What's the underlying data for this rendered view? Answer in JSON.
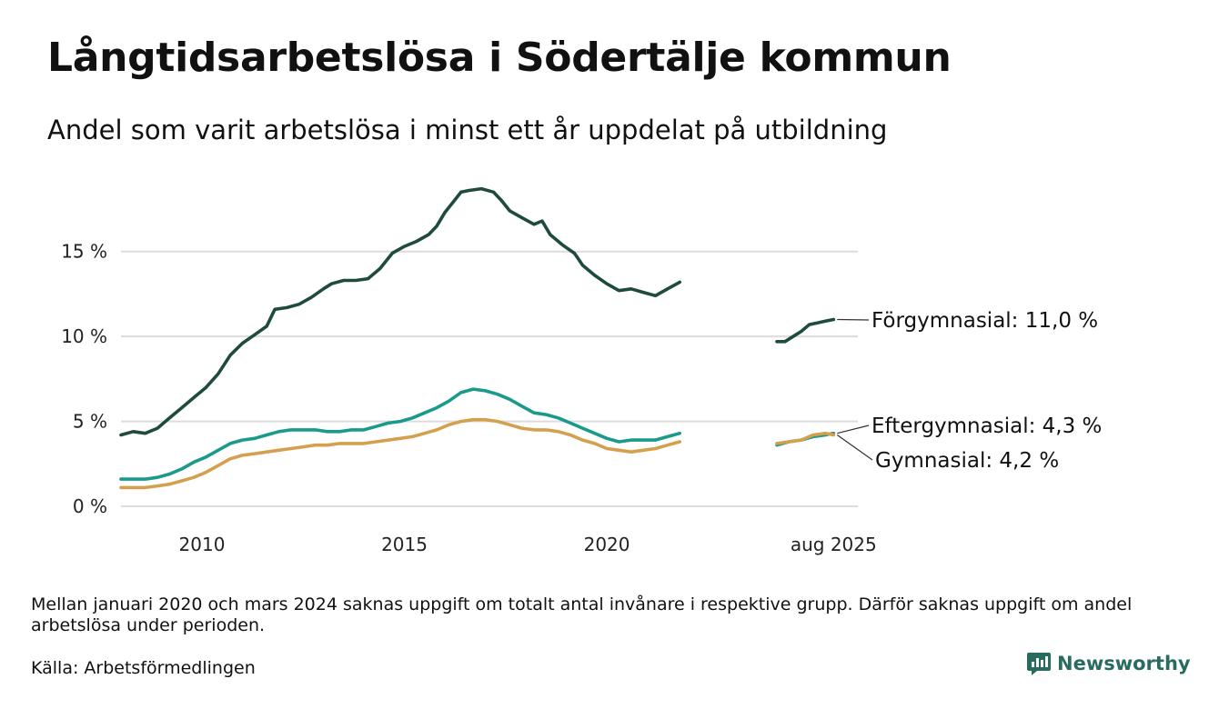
{
  "title": "Långtidsarbetslösa i Södertälje kommun",
  "subtitle": "Andel som varit arbetslösa i minst ett år uppdelat på utbildning",
  "note": "Mellan januari 2020 och mars 2024 saknas uppgift om totalt antal invånare i respektive grupp. Därför saknas uppgift om andel arbetslösa under perioden.",
  "source": "Källa: Arbetsförmedlingen",
  "brand": {
    "name": "Newsworthy",
    "color": "#2a6b5f"
  },
  "chart_data": {
    "type": "line",
    "x_unit": "year",
    "ylim": [
      0,
      19
    ],
    "xlim": [
      2008.0,
      2026.2
    ],
    "yticks": [
      0,
      5,
      10,
      15
    ],
    "ytick_labels": [
      "0 %",
      "5 %",
      "10 %",
      "15 %"
    ],
    "xticks": [
      2010,
      2015,
      2020,
      2025.6
    ],
    "xtick_labels": [
      "2010",
      "2015",
      "2020",
      "aug 2025"
    ],
    "grid": "horizontal",
    "series": [
      {
        "name": "Förgymnasial",
        "end_label": "Förgymnasial: 11,0 %",
        "color": "#1f4a40",
        "segments": [
          [
            [
              2008.0,
              4.2
            ],
            [
              2008.3,
              4.4
            ],
            [
              2008.6,
              4.3
            ],
            [
              2008.9,
              4.6
            ],
            [
              2009.2,
              5.2
            ],
            [
              2009.5,
              5.8
            ],
            [
              2009.8,
              6.4
            ],
            [
              2010.1,
              7.0
            ],
            [
              2010.4,
              7.8
            ],
            [
              2010.7,
              8.9
            ],
            [
              2011.0,
              9.6
            ],
            [
              2011.3,
              10.1
            ],
            [
              2011.6,
              10.6
            ],
            [
              2011.8,
              11.6
            ],
            [
              2012.1,
              11.7
            ],
            [
              2012.4,
              11.9
            ],
            [
              2012.7,
              12.3
            ],
            [
              2013.0,
              12.8
            ],
            [
              2013.2,
              13.1
            ],
            [
              2013.5,
              13.3
            ],
            [
              2013.8,
              13.3
            ],
            [
              2014.1,
              13.4
            ],
            [
              2014.4,
              14.0
            ],
            [
              2014.7,
              14.9
            ],
            [
              2015.0,
              15.3
            ],
            [
              2015.3,
              15.6
            ],
            [
              2015.6,
              16.0
            ],
            [
              2015.8,
              16.5
            ],
            [
              2016.0,
              17.3
            ],
            [
              2016.2,
              17.9
            ],
            [
              2016.4,
              18.5
            ],
            [
              2016.6,
              18.6
            ],
            [
              2016.9,
              18.7
            ],
            [
              2017.2,
              18.5
            ],
            [
              2017.4,
              18.0
            ],
            [
              2017.6,
              17.4
            ],
            [
              2017.9,
              17.0
            ],
            [
              2018.2,
              16.6
            ],
            [
              2018.4,
              16.8
            ],
            [
              2018.6,
              16.0
            ],
            [
              2018.9,
              15.4
            ],
            [
              2019.2,
              14.9
            ],
            [
              2019.4,
              14.2
            ],
            [
              2019.7,
              13.6
            ],
            [
              2020.0,
              13.1
            ],
            [
              2020.3,
              12.7
            ],
            [
              2020.6,
              12.8
            ],
            [
              2020.9,
              12.6
            ],
            [
              2021.2,
              12.4
            ],
            [
              2021.5,
              12.8
            ],
            [
              2021.8,
              13.2
            ]
          ],
          [
            [
              2024.2,
              9.7
            ],
            [
              2024.4,
              9.7
            ],
            [
              2024.6,
              10.0
            ],
            [
              2024.8,
              10.3
            ],
            [
              2025.0,
              10.7
            ],
            [
              2025.2,
              10.8
            ],
            [
              2025.4,
              10.9
            ],
            [
              2025.6,
              11.0
            ]
          ]
        ]
      },
      {
        "name": "Eftergymnasial",
        "end_label": "Eftergymnasial:  4,3 %",
        "color": "#1a9a8a",
        "segments": [
          [
            [
              2008.0,
              1.6
            ],
            [
              2008.3,
              1.6
            ],
            [
              2008.6,
              1.6
            ],
            [
              2008.9,
              1.7
            ],
            [
              2009.2,
              1.9
            ],
            [
              2009.5,
              2.2
            ],
            [
              2009.8,
              2.6
            ],
            [
              2010.1,
              2.9
            ],
            [
              2010.4,
              3.3
            ],
            [
              2010.7,
              3.7
            ],
            [
              2011.0,
              3.9
            ],
            [
              2011.3,
              4.0
            ],
            [
              2011.6,
              4.2
            ],
            [
              2011.9,
              4.4
            ],
            [
              2012.2,
              4.5
            ],
            [
              2012.5,
              4.5
            ],
            [
              2012.8,
              4.5
            ],
            [
              2013.1,
              4.4
            ],
            [
              2013.4,
              4.4
            ],
            [
              2013.7,
              4.5
            ],
            [
              2014.0,
              4.5
            ],
            [
              2014.3,
              4.7
            ],
            [
              2014.6,
              4.9
            ],
            [
              2014.9,
              5.0
            ],
            [
              2015.2,
              5.2
            ],
            [
              2015.5,
              5.5
            ],
            [
              2015.8,
              5.8
            ],
            [
              2016.1,
              6.2
            ],
            [
              2016.4,
              6.7
            ],
            [
              2016.7,
              6.9
            ],
            [
              2017.0,
              6.8
            ],
            [
              2017.3,
              6.6
            ],
            [
              2017.6,
              6.3
            ],
            [
              2017.9,
              5.9
            ],
            [
              2018.2,
              5.5
            ],
            [
              2018.5,
              5.4
            ],
            [
              2018.8,
              5.2
            ],
            [
              2019.1,
              4.9
            ],
            [
              2019.4,
              4.6
            ],
            [
              2019.7,
              4.3
            ],
            [
              2020.0,
              4.0
            ],
            [
              2020.3,
              3.8
            ],
            [
              2020.6,
              3.9
            ],
            [
              2020.9,
              3.9
            ],
            [
              2021.2,
              3.9
            ],
            [
              2021.5,
              4.1
            ],
            [
              2021.8,
              4.3
            ]
          ],
          [
            [
              2024.2,
              3.6
            ],
            [
              2024.5,
              3.8
            ],
            [
              2024.8,
              3.9
            ],
            [
              2025.1,
              4.1
            ],
            [
              2025.4,
              4.2
            ],
            [
              2025.6,
              4.3
            ]
          ]
        ]
      },
      {
        "name": "Gymnasial",
        "end_label": "Gymnasial:  4,2 %",
        "color": "#d4a04e",
        "segments": [
          [
            [
              2008.0,
              1.1
            ],
            [
              2008.3,
              1.1
            ],
            [
              2008.6,
              1.1
            ],
            [
              2008.9,
              1.2
            ],
            [
              2009.2,
              1.3
            ],
            [
              2009.5,
              1.5
            ],
            [
              2009.8,
              1.7
            ],
            [
              2010.1,
              2.0
            ],
            [
              2010.4,
              2.4
            ],
            [
              2010.7,
              2.8
            ],
            [
              2011.0,
              3.0
            ],
            [
              2011.3,
              3.1
            ],
            [
              2011.6,
              3.2
            ],
            [
              2011.9,
              3.3
            ],
            [
              2012.2,
              3.4
            ],
            [
              2012.5,
              3.5
            ],
            [
              2012.8,
              3.6
            ],
            [
              2013.1,
              3.6
            ],
            [
              2013.4,
              3.7
            ],
            [
              2013.7,
              3.7
            ],
            [
              2014.0,
              3.7
            ],
            [
              2014.3,
              3.8
            ],
            [
              2014.6,
              3.9
            ],
            [
              2014.9,
              4.0
            ],
            [
              2015.2,
              4.1
            ],
            [
              2015.5,
              4.3
            ],
            [
              2015.8,
              4.5
            ],
            [
              2016.1,
              4.8
            ],
            [
              2016.4,
              5.0
            ],
            [
              2016.7,
              5.1
            ],
            [
              2017.0,
              5.1
            ],
            [
              2017.3,
              5.0
            ],
            [
              2017.6,
              4.8
            ],
            [
              2017.9,
              4.6
            ],
            [
              2018.2,
              4.5
            ],
            [
              2018.5,
              4.5
            ],
            [
              2018.8,
              4.4
            ],
            [
              2019.1,
              4.2
            ],
            [
              2019.4,
              3.9
            ],
            [
              2019.7,
              3.7
            ],
            [
              2020.0,
              3.4
            ],
            [
              2020.3,
              3.3
            ],
            [
              2020.6,
              3.2
            ],
            [
              2020.9,
              3.3
            ],
            [
              2021.2,
              3.4
            ],
            [
              2021.5,
              3.6
            ],
            [
              2021.8,
              3.8
            ]
          ],
          [
            [
              2024.2,
              3.7
            ],
            [
              2024.5,
              3.8
            ],
            [
              2024.8,
              3.9
            ],
            [
              2025.1,
              4.2
            ],
            [
              2025.4,
              4.3
            ],
            [
              2025.6,
              4.2
            ]
          ]
        ]
      }
    ]
  }
}
